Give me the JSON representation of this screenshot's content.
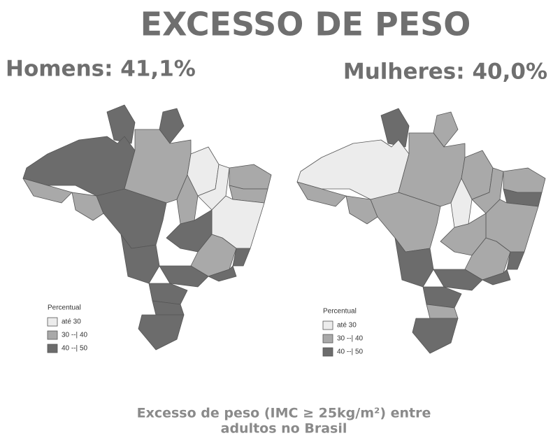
{
  "title": "EXCESSO DE PESO",
  "maps": [
    {
      "label": "Homens: 41,1%",
      "legend": {
        "title": "Percentual",
        "items": [
          "até 30",
          "30 --| 40",
          "40 --| 50"
        ]
      }
    },
    {
      "label": "Mulheres: 40,0%",
      "legend": {
        "title": "Percentual",
        "items": [
          "até 30",
          "30 --| 40",
          "40 --| 50"
        ]
      }
    }
  ],
  "caption": [
    "Excesso de peso (IMC ≥ 25kg/m²) entre",
    "adultos no Brasil"
  ]
}
